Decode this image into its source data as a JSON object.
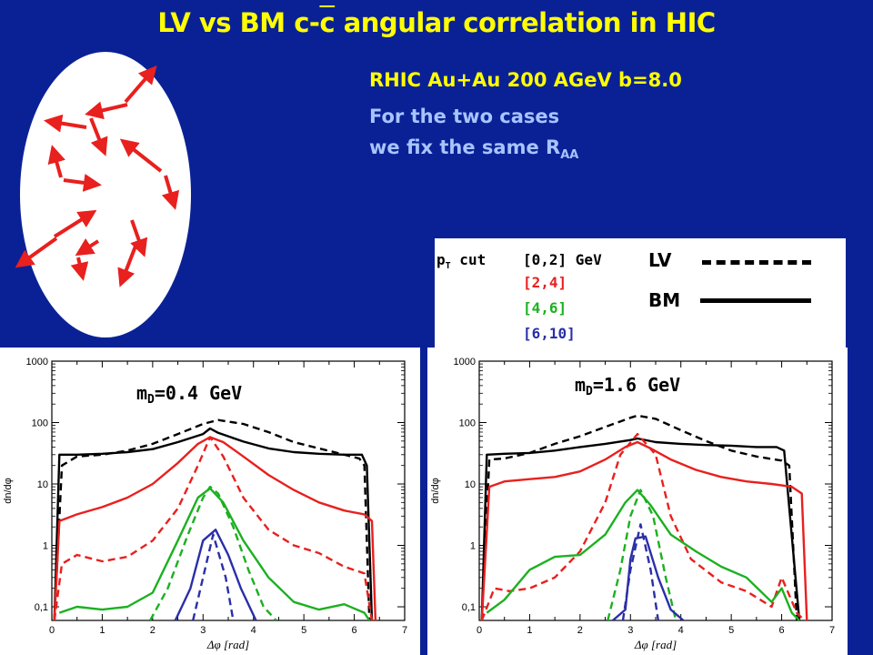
{
  "title_pre": "LV vs BM  c-",
  "title_bar": "c",
  "title_post": " angular correlation in HIC",
  "subtitle": "RHIC Au+Au  200 AGeV  b=8.0",
  "note_line1": "For the two cases",
  "note_line2_pre": "we fix the same R",
  "note_line2_sub": "AA",
  "legend": {
    "pt_cut_main": "p",
    "pt_cut_sub": "T",
    "pt_cut_rest": " cut",
    "ranges": [
      {
        "label": "[0,2] GeV",
        "color": "#000000"
      },
      {
        "label": "[2,4]",
        "color": "#e8201e"
      },
      {
        "label": "[4,6]",
        "color": "#1cb020"
      },
      {
        "label": "[6,10]",
        "color": "#2a2fa8"
      }
    ],
    "lv_label": "LV",
    "bm_label": "BM"
  },
  "colors": {
    "bg": "#0a2196",
    "title": "#ffff00",
    "note": "#a8c4ff",
    "arrow": "#e8201e"
  },
  "chart_data": [
    {
      "type": "line",
      "panel_label_pre": "m",
      "panel_label_sub": "D",
      "panel_label_post": "=0.4 GeV",
      "xlabel": "Δφ [rad]",
      "ylabel": "dn/dφ",
      "xlim": [
        0,
        7
      ],
      "ylim": [
        0.06,
        1000
      ],
      "yscale": "log",
      "xticks": [
        "0",
        "1",
        "2",
        "3",
        "4",
        "5",
        "6",
        "7"
      ],
      "yticks": [
        "0,1",
        "1",
        "10",
        "100",
        "1000"
      ],
      "series": [
        {
          "range": "[0,2] GeV",
          "style": "solid",
          "color": "#000000",
          "x": [
            0.05,
            0.15,
            0.5,
            1,
            1.5,
            2,
            2.5,
            3,
            3.14,
            3.3,
            3.8,
            4.3,
            4.8,
            5.3,
            5.8,
            6.15,
            6.25,
            6.35
          ],
          "y": [
            0.06,
            30,
            30,
            31,
            33,
            37,
            48,
            65,
            80,
            68,
            49,
            38,
            33,
            31,
            30,
            30,
            20,
            0.06
          ]
        },
        {
          "range": "[0,2] GeV",
          "style": "dashed",
          "color": "#000000",
          "x": [
            0.05,
            0.2,
            0.5,
            1,
            1.5,
            2,
            2.5,
            3,
            3.3,
            3.8,
            4.3,
            4.8,
            5.3,
            5.8,
            6.1,
            6.2,
            6.3
          ],
          "y": [
            0.06,
            20,
            28,
            30,
            35,
            45,
            65,
            95,
            110,
            95,
            70,
            48,
            38,
            30,
            26,
            20,
            0.06
          ]
        },
        {
          "range": "[2,4]",
          "style": "solid",
          "color": "#e8201e",
          "x": [
            0.05,
            0.15,
            0.5,
            1,
            1.5,
            2,
            2.5,
            2.9,
            3.14,
            3.4,
            3.8,
            4.3,
            4.8,
            5.3,
            5.8,
            6.2,
            6.35,
            6.42
          ],
          "y": [
            0.06,
            2.5,
            3.2,
            4.2,
            6,
            10,
            22,
            45,
            58,
            48,
            28,
            14,
            8,
            5,
            3.7,
            3.2,
            2.5,
            0.06
          ]
        },
        {
          "range": "[2,4]",
          "style": "dashed",
          "color": "#e8201e",
          "x": [
            0.05,
            0.2,
            0.5,
            1,
            1.5,
            2,
            2.5,
            2.9,
            3.14,
            3.4,
            3.8,
            4.3,
            4.8,
            5.3,
            5.8,
            6.2,
            6.35
          ],
          "y": [
            0.06,
            0.5,
            0.7,
            0.55,
            0.65,
            1.2,
            4,
            20,
            58,
            28,
            6,
            1.8,
            1,
            0.75,
            0.45,
            0.35,
            0.06
          ]
        },
        {
          "range": "[4,6]",
          "style": "solid",
          "color": "#1cb020",
          "x": [
            0.15,
            0.5,
            1,
            1.5,
            2,
            2.5,
            2.9,
            3.14,
            3.4,
            3.8,
            4.3,
            4.8,
            5.3,
            5.8,
            6.2,
            6.3
          ],
          "y": [
            0.08,
            0.1,
            0.09,
            0.1,
            0.17,
            1.2,
            6,
            8.5,
            5,
            1.2,
            0.3,
            0.12,
            0.09,
            0.11,
            0.08,
            0.06
          ]
        },
        {
          "range": "[4,6]",
          "style": "dashed",
          "color": "#1cb020",
          "x": [
            1.95,
            2.3,
            2.7,
            3.0,
            3.14,
            3.3,
            3.6,
            3.9,
            4.2,
            4.45
          ],
          "y": [
            0.06,
            0.2,
            1.5,
            6,
            9,
            7,
            2,
            0.4,
            0.1,
            0.06
          ]
        },
        {
          "range": "[6,10]",
          "style": "solid",
          "color": "#2a2fa8",
          "x": [
            2.45,
            2.75,
            3.0,
            3.25,
            3.5,
            3.75,
            4.05
          ],
          "y": [
            0.06,
            0.2,
            1.2,
            1.8,
            0.7,
            0.2,
            0.06
          ]
        },
        {
          "range": "[6,10]",
          "style": "dashed",
          "color": "#2a2fa8",
          "x": [
            2.8,
            3.0,
            3.2,
            3.45,
            3.6
          ],
          "y": [
            0.06,
            0.3,
            1.5,
            0.3,
            0.06
          ]
        }
      ]
    },
    {
      "type": "line",
      "panel_label_pre": "m",
      "panel_label_sub": "D",
      "panel_label_post": "=1.6 GeV",
      "xlabel": "Δφ [rad]",
      "ylabel": "dn/dφ",
      "xlim": [
        0,
        7
      ],
      "ylim": [
        0.06,
        1000
      ],
      "yscale": "log",
      "xticks": [
        "0",
        "1",
        "2",
        "3",
        "4",
        "5",
        "6",
        "7"
      ],
      "yticks": [
        "0,1",
        "1",
        "10",
        "100",
        "1000"
      ],
      "series": [
        {
          "range": "[0,2] GeV",
          "style": "solid",
          "color": "#000000",
          "x": [
            0.05,
            0.15,
            0.5,
            1,
            1.5,
            2,
            2.5,
            3,
            3.14,
            3.5,
            4,
            4.5,
            5,
            5.5,
            5.9,
            6.05,
            6.35
          ],
          "y": [
            0.06,
            30,
            31,
            32,
            35,
            40,
            45,
            52,
            55,
            48,
            45,
            43,
            42,
            40,
            40,
            35,
            0.06
          ]
        },
        {
          "range": "[0,2] GeV",
          "style": "dashed",
          "color": "#000000",
          "x": [
            0.05,
            0.2,
            0.5,
            1,
            1.5,
            2,
            2.5,
            3,
            3.14,
            3.5,
            4,
            4.5,
            5,
            5.5,
            6,
            6.15,
            6.3
          ],
          "y": [
            0.06,
            25,
            26,
            32,
            45,
            60,
            85,
            120,
            130,
            115,
            75,
            50,
            35,
            28,
            24,
            20,
            0.06
          ]
        },
        {
          "range": "[2,4]",
          "style": "solid",
          "color": "#e8201e",
          "x": [
            0.05,
            0.2,
            0.5,
            1,
            1.5,
            2,
            2.5,
            2.9,
            3.14,
            3.4,
            3.8,
            4.3,
            4.8,
            5.3,
            5.8,
            6.2,
            6.4,
            6.5
          ],
          "y": [
            0.06,
            9,
            11,
            12,
            13,
            16,
            25,
            40,
            48,
            38,
            25,
            17,
            13,
            11,
            10,
            9,
            7,
            0.06
          ]
        },
        {
          "range": "[2,4]",
          "style": "dashed",
          "color": "#e8201e",
          "x": [
            0.05,
            0.3,
            0.6,
            1,
            1.5,
            2,
            2.5,
            2.8,
            3.14,
            3.5,
            3.8,
            4.2,
            4.8,
            5.3,
            5.8,
            6.0,
            6.3,
            6.45
          ],
          "y": [
            0.06,
            0.2,
            0.18,
            0.2,
            0.3,
            0.8,
            5,
            30,
            65,
            30,
            3,
            0.6,
            0.25,
            0.18,
            0.1,
            0.3,
            0.08,
            0.06
          ]
        },
        {
          "range": "[4,6]",
          "style": "solid",
          "color": "#1cb020",
          "x": [
            0.15,
            0.5,
            1,
            1.5,
            2,
            2.5,
            2.9,
            3.14,
            3.4,
            3.8,
            4.3,
            4.8,
            5.3,
            5.8,
            6.0,
            6.2,
            6.35
          ],
          "y": [
            0.08,
            0.13,
            0.4,
            0.65,
            0.7,
            1.5,
            5,
            8,
            4.5,
            1.5,
            0.8,
            0.45,
            0.3,
            0.12,
            0.2,
            0.08,
            0.06
          ]
        },
        {
          "range": "[4,6]",
          "style": "dashed",
          "color": "#1cb020",
          "x": [
            2.55,
            2.8,
            3.0,
            3.2,
            3.45,
            3.7,
            3.9
          ],
          "y": [
            0.06,
            0.4,
            3,
            8,
            3,
            0.3,
            0.06
          ]
        },
        {
          "range": "[6,10]",
          "style": "solid",
          "color": "#2a2fa8",
          "x": [
            2.65,
            2.9,
            3.0,
            3.1,
            3.3,
            3.55,
            3.8,
            4.05
          ],
          "y": [
            0.06,
            0.09,
            0.6,
            1.3,
            1.4,
            0.3,
            0.09,
            0.06
          ]
        },
        {
          "range": "[6,10]",
          "style": "dashed",
          "color": "#2a2fa8",
          "x": [
            2.85,
            3.0,
            3.2,
            3.4,
            3.55
          ],
          "y": [
            0.06,
            0.4,
            2.2,
            0.4,
            0.06
          ]
        }
      ]
    }
  ]
}
